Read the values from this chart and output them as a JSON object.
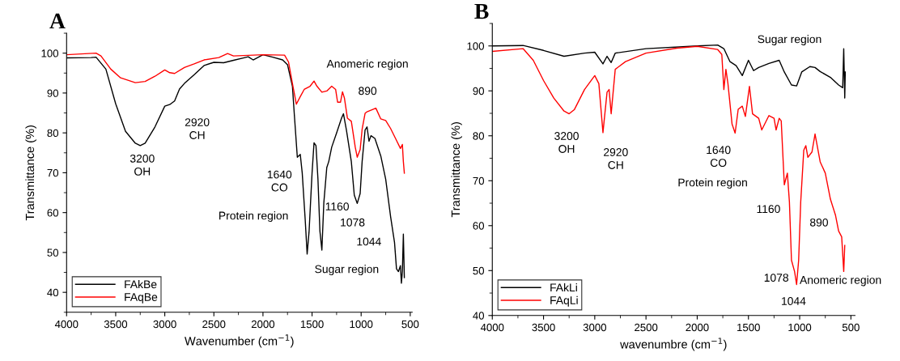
{
  "chart_data": [
    {
      "type": "line",
      "title": "A",
      "xlabel": "Wavenumber (cm$^{−1}$)",
      "ylabel": "Transmittance (%)",
      "xlim": [
        4000,
        480
      ],
      "ylim": [
        35,
        105
      ],
      "xticks": [
        4000,
        3500,
        3000,
        2500,
        2000,
        1500,
        1000,
        500
      ],
      "yticks": [
        40,
        50,
        60,
        70,
        80,
        90,
        100
      ],
      "grid": false,
      "legend": "bottom left",
      "line_style": "solid",
      "marker": "none",
      "annotations": [
        "3200\nOH",
        "2920\nCH",
        "1640\nCO",
        "Protein region",
        "1160",
        "1078",
        "1044",
        "Sugar region",
        "Anomeric region",
        "890"
      ],
      "series": [
        {
          "name": "FAkBe",
          "color": "#000000",
          "x": [
            4000,
            3750,
            3700,
            3600,
            3500,
            3400,
            3300,
            3250,
            3200,
            3100,
            3000,
            2950,
            2900,
            2850,
            2800,
            2700,
            2600,
            2500,
            2400,
            2300,
            2200,
            2150,
            2100,
            2000,
            1900,
            1800,
            1750,
            1700,
            1680,
            1650,
            1620,
            1600,
            1570,
            1550,
            1530,
            1500,
            1480,
            1460,
            1440,
            1420,
            1400,
            1380,
            1350,
            1330,
            1300,
            1250,
            1200,
            1180,
            1150,
            1100,
            1070,
            1040,
            1010,
            990,
            960,
            940,
            920,
            900,
            860,
            800,
            750,
            700,
            660,
            640,
            620,
            600,
            590,
            580,
            570,
            560
          ],
          "values": [
            98.8,
            98.9,
            99,
            96,
            87.3,
            80.4,
            77.4,
            76.8,
            77.4,
            81.5,
            86.7,
            87.1,
            88,
            91,
            92.4,
            94.6,
            96.9,
            97.7,
            97.6,
            98.2,
            98.8,
            99.1,
            98.3,
            99.6,
            99,
            98.3,
            97.1,
            91.7,
            84.4,
            73.9,
            74.6,
            69.9,
            58.3,
            49.6,
            55.4,
            69.9,
            77.5,
            76.8,
            68.4,
            55.4,
            50.6,
            62.5,
            71.3,
            72.8,
            76.4,
            80,
            83.7,
            84.8,
            80.7,
            72.8,
            64.4,
            62.3,
            64.8,
            72.8,
            80.7,
            81.5,
            77.9,
            79.3,
            78.6,
            74.2,
            68.4,
            59,
            52.5,
            45.9,
            45.2,
            46.7,
            42.3,
            45.2,
            54.6,
            43.7
          ]
        },
        {
          "name": "FAqBe",
          "color": "#ff0000",
          "x": [
            4000,
            3700,
            3650,
            3550,
            3450,
            3300,
            3200,
            3100,
            3000,
            2950,
            2900,
            2800,
            2700,
            2600,
            2450,
            2360,
            2300,
            2000,
            1780,
            1740,
            1700,
            1660,
            1620,
            1580,
            1520,
            1480,
            1450,
            1400,
            1350,
            1300,
            1260,
            1240,
            1210,
            1190,
            1170,
            1140,
            1100,
            1060,
            1040,
            1010,
            990,
            960,
            940,
            900,
            850,
            800,
            750,
            700,
            650,
            600,
            580,
            570,
            560
          ],
          "values": [
            99.6,
            100,
            99.3,
            96,
            93.8,
            92.6,
            92.9,
            94.2,
            95.8,
            95.1,
            94.9,
            96.4,
            97.3,
            98.3,
            98.9,
            99.9,
            99.3,
            99.6,
            99.5,
            97.8,
            92.4,
            87.2,
            89.1,
            90.9,
            91.7,
            93,
            91.7,
            90.2,
            90.5,
            91.7,
            90.9,
            87.7,
            87.7,
            90.3,
            88.7,
            83.7,
            82.9,
            76.4,
            73.9,
            75.8,
            80.9,
            84.9,
            85.3,
            85.7,
            86.2,
            83.5,
            83.1,
            81.1,
            78.6,
            76.1,
            77.1,
            72.8,
            69.9
          ]
        }
      ]
    },
    {
      "type": "line",
      "title": "B",
      "xlabel": "wavenumbre (cm$^{−1}$)",
      "ylabel": "Transmittance (%)",
      "xlim": [
        4000,
        460
      ],
      "ylim": [
        40,
        105
      ],
      "xticks": [
        4000,
        3500,
        3000,
        2500,
        2000,
        1500,
        1000,
        500
      ],
      "yticks": [
        40,
        50,
        60,
        70,
        80,
        90,
        100
      ],
      "grid": false,
      "legend": "bottom left",
      "line_style": "solid",
      "marker": "none",
      "annotations": [
        "3200\nOH",
        "2920\nCH",
        "1640\nCO",
        "Protein region",
        "Sugar region",
        "1160",
        "890",
        "1078",
        "Anomeric region",
        "1044"
      ],
      "series": [
        {
          "name": "FAkLi",
          "color": "#000000",
          "x": [
            4000,
            3700,
            3500,
            3300,
            3100,
            3000,
            2920,
            2880,
            2840,
            2800,
            2500,
            2000,
            1800,
            1740,
            1680,
            1620,
            1560,
            1500,
            1450,
            1400,
            1300,
            1200,
            1150,
            1080,
            1030,
            980,
            900,
            850,
            800,
            700,
            620,
            580,
            570,
            560,
            555
          ],
          "values": [
            100,
            100.1,
            99,
            97.7,
            98.4,
            98.6,
            96,
            97.7,
            96.3,
            98.4,
            99.4,
            100,
            100.2,
            99.4,
            96.5,
            95.6,
            93.4,
            96.8,
            94.5,
            95.2,
            96.1,
            96.8,
            94.2,
            91.3,
            91.1,
            94.2,
            95.4,
            95.2,
            94.3,
            93,
            91.3,
            90.7,
            99.4,
            88.4,
            94.2
          ]
        },
        {
          "name": "FAqLi",
          "color": "#ff0000",
          "x": [
            4000,
            3700,
            3600,
            3500,
            3400,
            3300,
            3250,
            3200,
            3100,
            3000,
            2960,
            2920,
            2880,
            2860,
            2840,
            2800,
            2700,
            2500,
            2200,
            2000,
            1800,
            1760,
            1740,
            1720,
            1700,
            1660,
            1630,
            1600,
            1560,
            1530,
            1490,
            1460,
            1400,
            1370,
            1300,
            1250,
            1230,
            1200,
            1180,
            1150,
            1120,
            1100,
            1080,
            1050,
            1030,
            1010,
            990,
            960,
            940,
            920,
            880,
            850,
            800,
            750,
            700,
            650,
            620,
            590,
            570,
            560
          ],
          "values": [
            98.8,
            99.4,
            96.8,
            92.3,
            88.4,
            85.5,
            84.9,
            85.8,
            90.3,
            93.4,
            91.6,
            80.7,
            89.7,
            90.3,
            84.9,
            94.8,
            96.5,
            98.4,
            99.5,
            99.9,
            99.2,
            98.1,
            90.3,
            94.8,
            91.6,
            82.6,
            80.6,
            85.9,
            86.6,
            84.3,
            91,
            84.9,
            83.9,
            81.3,
            84.5,
            83.9,
            81.3,
            83.9,
            83.3,
            69.1,
            71.7,
            65.2,
            52.3,
            49.8,
            46.9,
            52.3,
            65.2,
            76.8,
            77.8,
            75.2,
            76.4,
            80.4,
            74.2,
            71.7,
            65.9,
            62.3,
            58.8,
            57.5,
            49.8,
            55.6
          ]
        }
      ]
    }
  ]
}
